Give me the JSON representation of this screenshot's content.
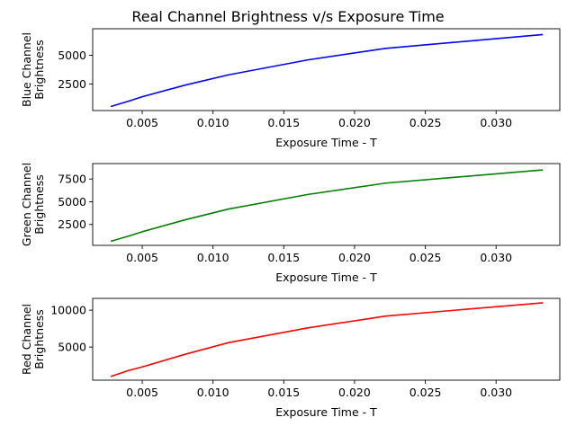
{
  "figure": {
    "title": "Real Channel Brightness v/s Exposure Time"
  },
  "chart_data": [
    {
      "type": "line",
      "ylabel_lines": [
        "Blue Channel",
        "Brightness"
      ],
      "xlabel": "Exposure Time - T",
      "color": "#0000ff",
      "xlim": [
        0.0015,
        0.0345
      ],
      "ylim": [
        200,
        7300
      ],
      "x_ticks": [
        0.005,
        0.01,
        0.015,
        0.02,
        0.025,
        0.03
      ],
      "x_tick_labels": [
        "0.005",
        "0.010",
        "0.015",
        "0.020",
        "0.025",
        "0.030"
      ],
      "y_ticks": [
        2500,
        5000
      ],
      "y_tick_labels": [
        "2500",
        "5000"
      ],
      "x": [
        0.00278,
        0.004,
        0.005,
        0.008,
        0.0111,
        0.0167,
        0.0222,
        0.0333
      ],
      "y": [
        550,
        1000,
        1400,
        2400,
        3300,
        4600,
        5600,
        6800
      ],
      "grid": false,
      "legend": false
    },
    {
      "type": "line",
      "ylabel_lines": [
        "Green Channel",
        "Brightness"
      ],
      "xlabel": "Exposure Time - T",
      "color": "#008000",
      "xlim": [
        0.0015,
        0.0345
      ],
      "ylim": [
        200,
        9200
      ],
      "x_ticks": [
        0.005,
        0.01,
        0.015,
        0.02,
        0.025,
        0.03
      ],
      "x_tick_labels": [
        "0.005",
        "0.010",
        "0.015",
        "0.020",
        "0.025",
        "0.030"
      ],
      "y_ticks": [
        2500,
        5000,
        7500
      ],
      "y_tick_labels": [
        "2500",
        "5000",
        "7500"
      ],
      "x": [
        0.00278,
        0.004,
        0.005,
        0.008,
        0.0111,
        0.0167,
        0.0222,
        0.0333
      ],
      "y": [
        650,
        1200,
        1700,
        3000,
        4200,
        5800,
        7050,
        8500
      ],
      "grid": false,
      "legend": false
    },
    {
      "type": "line",
      "ylabel_lines": [
        "Red Channel",
        "Brightness"
      ],
      "xlabel": "Exposure Time - T",
      "color": "#ff0000",
      "xlim": [
        0.0015,
        0.0345
      ],
      "ylim": [
        500,
        11600
      ],
      "x_ticks": [
        0.005,
        0.01,
        0.015,
        0.02,
        0.025,
        0.03
      ],
      "x_tick_labels": [
        "0.005",
        "0.010",
        "0.015",
        "0.020",
        "0.025",
        "0.030"
      ],
      "y_ticks": [
        5000,
        10000
      ],
      "y_tick_labels": [
        "5000",
        "10000"
      ],
      "x": [
        0.00278,
        0.004,
        0.005,
        0.008,
        0.0111,
        0.0167,
        0.0222,
        0.0333
      ],
      "y": [
        1000,
        1800,
        2300,
        4000,
        5600,
        7600,
        9200,
        11000
      ],
      "grid": false,
      "legend": false
    }
  ]
}
